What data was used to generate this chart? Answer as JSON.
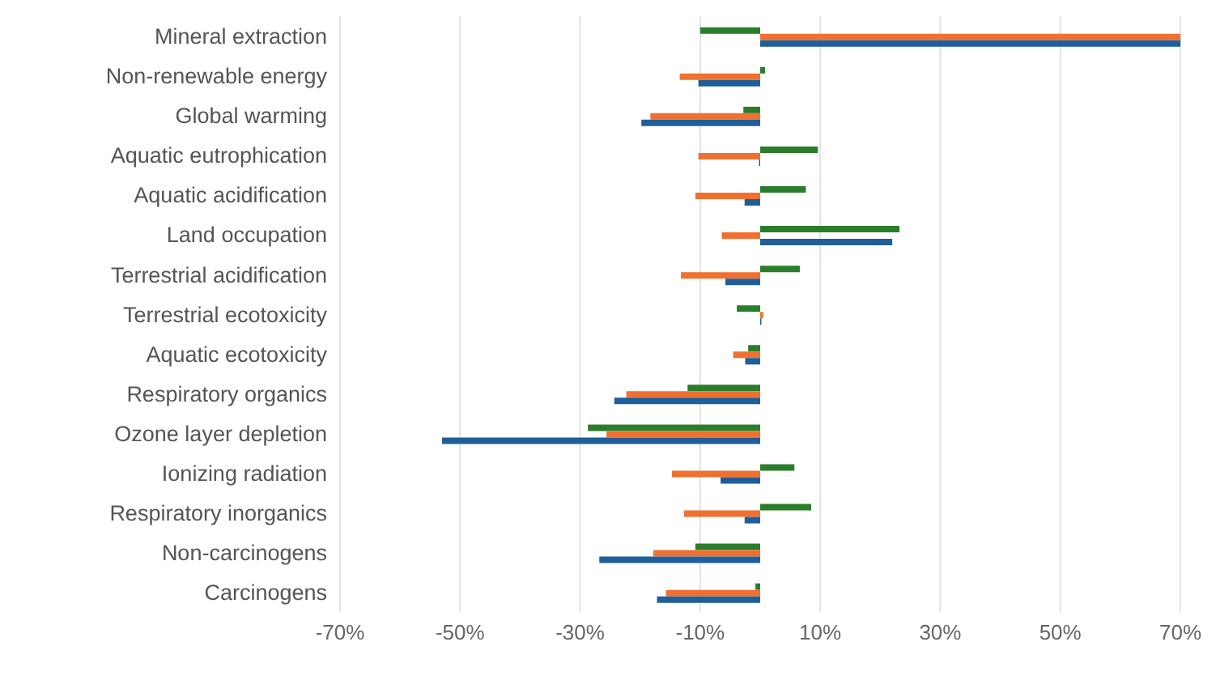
{
  "chart_data": {
    "type": "bar",
    "orientation": "horizontal",
    "categories": [
      "Mineral extraction",
      "Non-renewable energy",
      "Global warming",
      "Aquatic eutrophication",
      "Aquatic acidification",
      "Land occupation",
      "Terrestrial acidification",
      "Terrestrial ecotoxicity",
      "Aquatic ecotoxicity",
      "Respiratory organics",
      "Ozone layer depletion",
      "Ionizing radiation",
      "Respiratory inorganics",
      "Non-carcinogens",
      "Carcinogens"
    ],
    "series": [
      {
        "color": "#2a7d2a",
        "values": [
          -10,
          0.8,
          -2.8,
          9.6,
          7.6,
          23.2,
          6.6,
          -3.9,
          -2,
          -12.1,
          -28.7,
          5.7,
          8.5,
          -10.8,
          -0.8
        ]
      },
      {
        "color": "#f07030",
        "values": [
          70,
          -13.4,
          -18.3,
          -10.3,
          -10.8,
          -6.4,
          -13.2,
          0.5,
          -4.5,
          -22.3,
          -25.6,
          -14.7,
          -12.7,
          -17.8,
          -15.7
        ]
      },
      {
        "color": "#1f5f99",
        "values": [
          70,
          -10.3,
          -19.8,
          -0.2,
          -2.6,
          22,
          -5.8,
          0.2,
          -2.5,
          -24.3,
          -53,
          -6.6,
          -2.6,
          -26.8,
          -17.2
        ]
      }
    ],
    "xlim": [
      -70,
      70
    ],
    "xticks": [
      {
        "value": -70,
        "label": "-70%"
      },
      {
        "value": -50,
        "label": "-50%"
      },
      {
        "value": -30,
        "label": "-30%"
      },
      {
        "value": -10,
        "label": "-10%"
      },
      {
        "value": 10,
        "label": "10%"
      },
      {
        "value": 30,
        "label": "30%"
      },
      {
        "value": 50,
        "label": "50%"
      },
      {
        "value": 70,
        "label": "70%"
      }
    ],
    "grid": "x",
    "legend": false
  }
}
